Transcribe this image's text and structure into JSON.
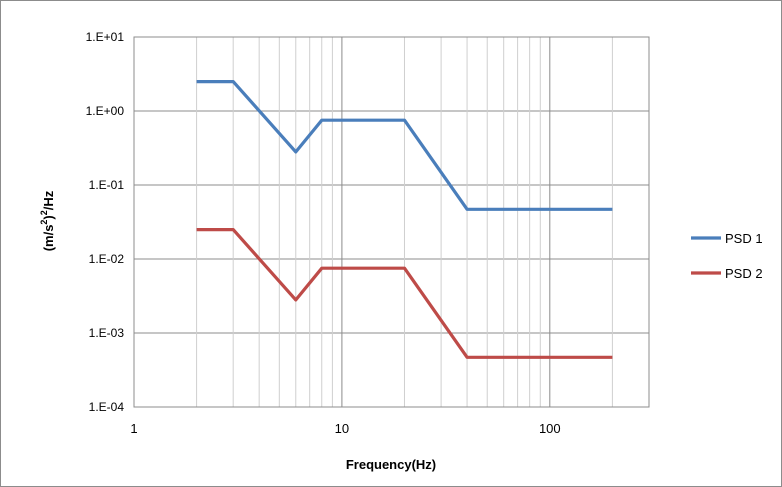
{
  "chart_data": {
    "type": "line",
    "xscale": "log",
    "yscale": "log",
    "xlabel": "Frequency(Hz)",
    "ylabel_parts": [
      "(m/s",
      "2",
      ")",
      "2",
      "/Hz"
    ],
    "xlim": [
      1,
      300
    ],
    "ylim": [
      0.0001,
      10
    ],
    "x_ticks": [
      {
        "value": 1,
        "label": "1"
      },
      {
        "value": 10,
        "label": "10"
      },
      {
        "value": 100,
        "label": "100"
      }
    ],
    "y_ticks": [
      {
        "value": 10,
        "label": "1.E+01"
      },
      {
        "value": 1,
        "label": "1.E+00"
      },
      {
        "value": 0.1,
        "label": "1.E-01"
      },
      {
        "value": 0.01,
        "label": "1.E-02"
      },
      {
        "value": 0.001,
        "label": "1.E-03"
      },
      {
        "value": 0.0001,
        "label": "1.E-04"
      }
    ],
    "grid": true,
    "legend_position": "right",
    "series": [
      {
        "name": "PSD 1",
        "color": "#4a7ebb",
        "points": [
          [
            2,
            2.5
          ],
          [
            3,
            2.5
          ],
          [
            6,
            0.28
          ],
          [
            8,
            0.75
          ],
          [
            20,
            0.75
          ],
          [
            40,
            0.047
          ],
          [
            200,
            0.047
          ]
        ]
      },
      {
        "name": "PSD 2",
        "color": "#be4b48",
        "points": [
          [
            2,
            0.025
          ],
          [
            3,
            0.025
          ],
          [
            6,
            0.0028
          ],
          [
            8,
            0.0075
          ],
          [
            20,
            0.0075
          ],
          [
            40,
            0.00047
          ],
          [
            200,
            0.00047
          ]
        ]
      }
    ]
  }
}
